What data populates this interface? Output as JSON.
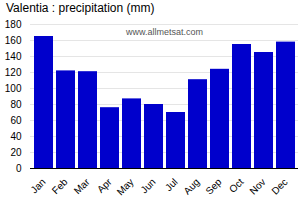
{
  "chart_data": {
    "type": "bar",
    "title": "Valentia : precipitation (mm)",
    "categories": [
      "Jan",
      "Feb",
      "Mar",
      "Apr",
      "May",
      "Jun",
      "Jul",
      "Aug",
      "Sep",
      "Oct",
      "Nov",
      "Dec"
    ],
    "values": [
      165,
      122,
      121,
      76,
      87,
      80,
      70,
      111,
      124,
      155,
      145,
      158
    ],
    "color": "#0000cc",
    "ylim": [
      0,
      180
    ],
    "yticks": [
      0,
      20,
      40,
      60,
      80,
      100,
      120,
      140,
      160,
      180
    ],
    "grid": true,
    "annotations": [
      "www.allmetsat.com"
    ]
  }
}
